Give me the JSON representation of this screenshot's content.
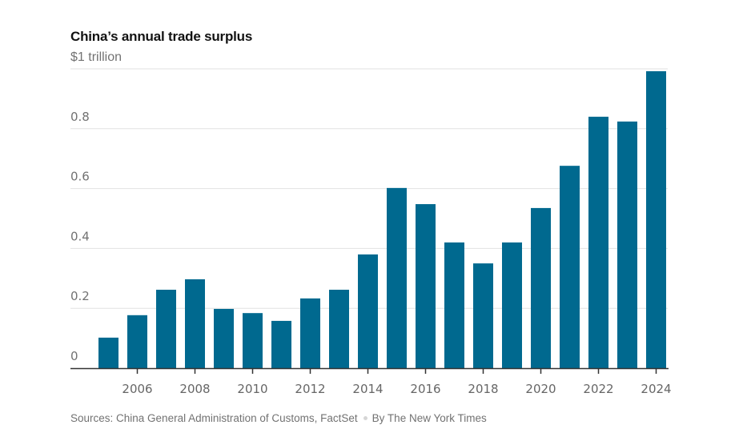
{
  "chart_data": {
    "type": "bar",
    "title": "China’s annual trade surplus",
    "unit_label": "$1 trillion",
    "xlabel": "",
    "ylabel": "",
    "ylim": [
      0,
      1.0
    ],
    "yticks": [
      0,
      0.2,
      0.4,
      0.6,
      0.8,
      1.0
    ],
    "ytick_labels": [
      "0",
      "0.2",
      "0.4",
      "0.6",
      "0.8",
      ""
    ],
    "xtick_labels": [
      "2006",
      "2008",
      "2010",
      "2012",
      "2014",
      "2016",
      "2018",
      "2020",
      "2022",
      "2024"
    ],
    "grid": true,
    "bar_color": "#00698f",
    "categories": [
      2005,
      2006,
      2007,
      2008,
      2009,
      2010,
      2011,
      2012,
      2013,
      2014,
      2015,
      2016,
      2017,
      2018,
      2019,
      2020,
      2021,
      2022,
      2023,
      2024
    ],
    "values": [
      0.102,
      0.177,
      0.262,
      0.297,
      0.198,
      0.184,
      0.158,
      0.233,
      0.262,
      0.38,
      0.602,
      0.548,
      0.42,
      0.35,
      0.42,
      0.535,
      0.676,
      0.84,
      0.824,
      0.992
    ]
  },
  "footer": {
    "sources": "Sources: China General Administration of Customs, FactSet",
    "credit": "By The New York Times"
  }
}
